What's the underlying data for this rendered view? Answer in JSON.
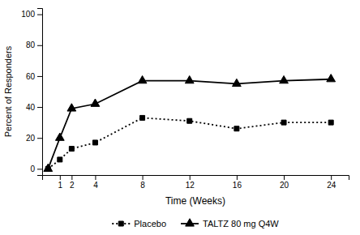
{
  "chart_data": {
    "type": "line",
    "x": [
      0,
      1,
      2,
      4,
      8,
      12,
      16,
      20,
      24
    ],
    "series": [
      {
        "name": "Placebo",
        "color": "#000000",
        "marker": "square",
        "line_style": "dotted",
        "values": [
          0,
          6,
          13,
          17,
          33,
          31,
          26,
          30,
          30
        ]
      },
      {
        "name": "TALTZ 80 mg Q4W",
        "color": "#000000",
        "marker": "triangle",
        "line_style": "solid",
        "values": [
          0,
          20,
          39,
          42,
          57,
          57,
          55,
          57,
          58
        ]
      }
    ],
    "xlabel": "Time  (Weeks)",
    "ylabel": "Percent of Responders",
    "xlim": [
      -0.5,
      25.5
    ],
    "xticks": [
      1,
      2,
      4,
      8,
      12,
      16,
      20,
      24
    ],
    "ylim": [
      -4,
      104
    ],
    "yticks": [
      0,
      20,
      40,
      60,
      80,
      100
    ],
    "legend": "bottom"
  }
}
